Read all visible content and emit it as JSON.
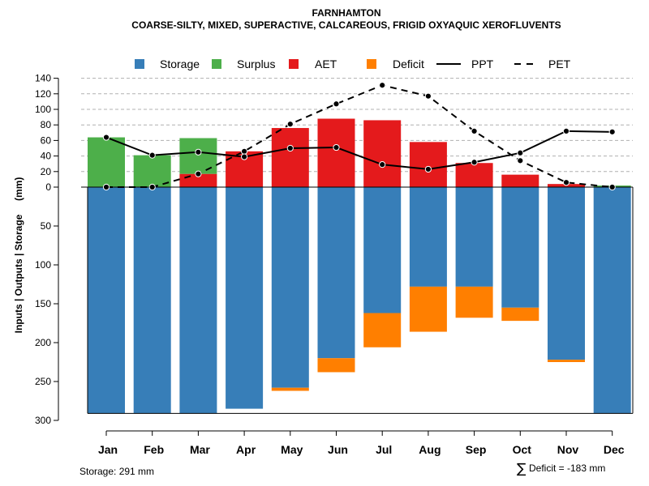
{
  "chart_data": {
    "type": "bar",
    "title": "FARNHAMTON",
    "subtitle": "COARSE-SILTY, MIXED, SUPERACTIVE, CALCAREOUS, FRIGID OXYAQUIC XEROFLUVENTS",
    "ylabel": "Inputs | Outputs | Storage     (mm)",
    "categories": [
      "Jan",
      "Feb",
      "Mar",
      "Apr",
      "May",
      "Jun",
      "Jul",
      "Aug",
      "Sep",
      "Oct",
      "Nov",
      "Dec"
    ],
    "yticks_up": [
      0,
      20,
      40,
      60,
      80,
      100,
      120,
      140
    ],
    "yticks_down": [
      0,
      50,
      100,
      150,
      200,
      250,
      300
    ],
    "series": [
      {
        "name": "Storage",
        "color": "#377EB8",
        "values": [
          291,
          291,
          291,
          285,
          258,
          220,
          162,
          128,
          128,
          155,
          222,
          291
        ]
      },
      {
        "name": "Surplus",
        "color": "#4DAF4A",
        "values": [
          64,
          41,
          46,
          0,
          0,
          0,
          0,
          0,
          0,
          0,
          0,
          2
        ]
      },
      {
        "name": "AET",
        "color": "#E41A1C",
        "values": [
          0,
          0,
          17,
          46,
          76,
          88,
          86,
          58,
          31,
          16,
          4,
          0
        ]
      },
      {
        "name": "Deficit",
        "color": "#FF7F00",
        "values": [
          0,
          0,
          0,
          0,
          4,
          18,
          44,
          58,
          40,
          17,
          3,
          0
        ]
      },
      {
        "name": "PPT",
        "color": "#000000",
        "style": "solid",
        "values": [
          64,
          41,
          45,
          39,
          50,
          51,
          29,
          23,
          32,
          44,
          72,
          71
        ]
      },
      {
        "name": "PET",
        "color": "#000000",
        "style": "dashed",
        "values": [
          0,
          0,
          17,
          46,
          81,
          107,
          131,
          117,
          72,
          34,
          6,
          0
        ]
      }
    ],
    "legend": [
      "Storage",
      "Surplus",
      "AET",
      "Deficit",
      "PPT",
      "PET"
    ],
    "legend_position": "top",
    "grid": true
  },
  "footer": {
    "storage": "Storage: 291 mm",
    "deficit": "Deficit = -183 mm",
    "sigma": "∑"
  }
}
